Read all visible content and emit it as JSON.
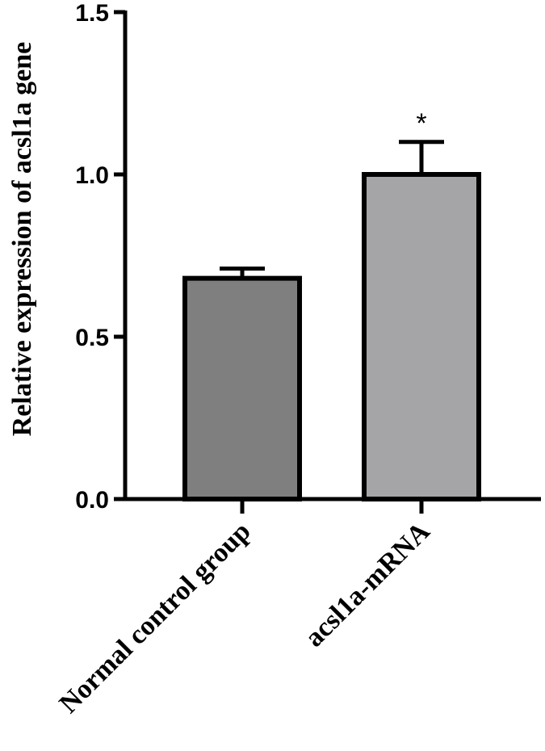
{
  "chart_data": {
    "type": "bar",
    "title": "",
    "xlabel": "",
    "ylabel": "Relative expression of acsl1a gene",
    "ylim": [
      0,
      1.5
    ],
    "yticks": [
      0.0,
      0.5,
      1.0,
      1.5
    ],
    "ytick_labels": [
      "0.0",
      "0.5",
      "1.0",
      "1.5"
    ],
    "categories": [
      "Normal control group",
      "acsl1a-mRNA"
    ],
    "values": [
      0.68,
      1.0
    ],
    "errors": [
      0.03,
      0.1
    ],
    "significance": [
      "",
      "*"
    ],
    "bar_colors": [
      "#7f7f7f",
      "#a5a5a8"
    ],
    "grid": false,
    "legend": "none"
  }
}
